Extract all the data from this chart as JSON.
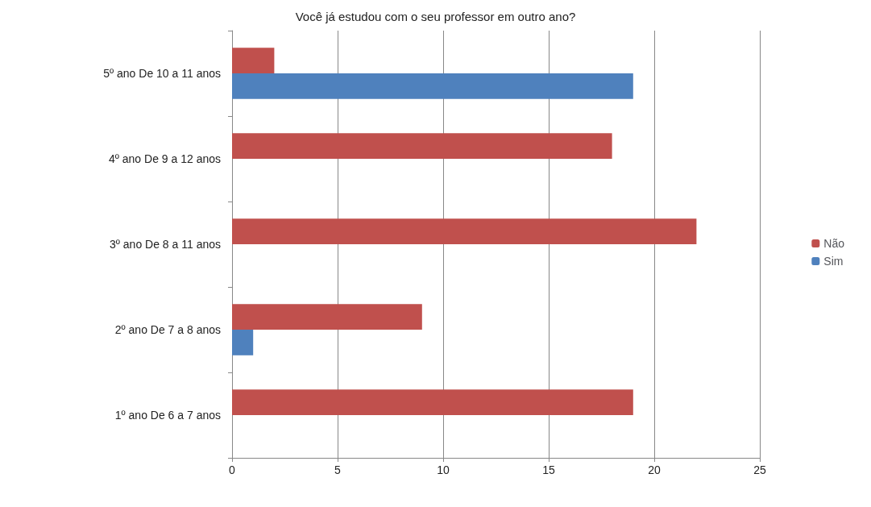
{
  "chart_data": {
    "type": "bar",
    "orientation": "horizontal",
    "title": "Você já estudou com o seu professor em outro ano?",
    "categories": [
      "5º ano De 10 a 11 anos",
      "4º ano De 9 a 12 anos",
      "3º ano De 8 a 11 anos",
      "2º ano De 7 a 8 anos",
      "1º ano De 6 a 7 anos"
    ],
    "series": [
      {
        "name": "Não",
        "color": "#c0504d",
        "values": [
          2,
          18,
          22,
          9,
          19
        ]
      },
      {
        "name": "Sim",
        "color": "#4f81bd",
        "values": [
          19,
          0,
          0,
          1,
          0
        ]
      }
    ],
    "xlim": [
      0,
      25
    ],
    "xticks": [
      0,
      5,
      10,
      15,
      20,
      25
    ],
    "grid": "x",
    "legend": "right"
  }
}
